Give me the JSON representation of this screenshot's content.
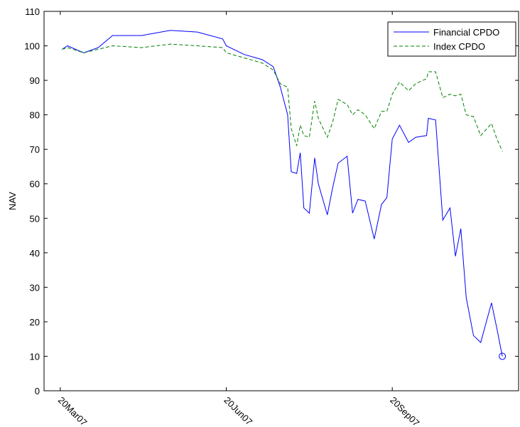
{
  "chart_data": {
    "type": "line",
    "ylabel": "NAV",
    "x": [
      "2007-03-21",
      "2007-03-24",
      "2007-04-02",
      "2007-04-10",
      "2007-04-18",
      "2007-05-04",
      "2007-05-20",
      "2007-06-04",
      "2007-06-18",
      "2007-06-20",
      "2007-06-30",
      "2007-07-10",
      "2007-07-16",
      "2007-07-20",
      "2007-07-24",
      "2007-07-26",
      "2007-07-29",
      "2007-07-31",
      "2007-08-02",
      "2007-08-05",
      "2007-08-08",
      "2007-08-10",
      "2007-08-15",
      "2007-08-18",
      "2007-08-21",
      "2007-08-26",
      "2007-08-29",
      "2007-09-01",
      "2007-09-05",
      "2007-09-10",
      "2007-09-14",
      "2007-09-17",
      "2007-09-20",
      "2007-09-24",
      "2007-09-29",
      "2007-10-03",
      "2007-10-09",
      "2007-10-10",
      "2007-10-14",
      "2007-10-18",
      "2007-10-22",
      "2007-10-25",
      "2007-10-28",
      "2007-10-31",
      "2007-11-04",
      "2007-11-08",
      "2007-11-14",
      "2007-11-17",
      "2007-11-20"
    ],
    "series": [
      {
        "name": "Financial CPDO",
        "color": "#0000ff",
        "dash": "solid",
        "end_marker": "circle",
        "values": [
          99,
          100,
          98,
          99.5,
          103,
          103,
          104.5,
          104,
          102,
          100,
          97.5,
          96,
          94,
          88,
          80,
          63.5,
          63,
          69,
          53,
          51.5,
          67.5,
          60,
          51,
          59,
          66,
          68,
          51.5,
          55.5,
          55,
          44,
          54,
          56,
          73,
          77,
          72,
          73.5,
          74,
          79,
          78.5,
          49.5,
          53,
          39,
          47,
          27,
          16,
          14,
          25.5,
          18,
          10
        ]
      },
      {
        "name": "Index CPDO",
        "color": "#008000",
        "dash": "dashed",
        "values": [
          99,
          99.5,
          98,
          99,
          100,
          99.5,
          100.5,
          100,
          99.5,
          98,
          96.5,
          95,
          93,
          89,
          88,
          76,
          71,
          77,
          74,
          73.5,
          84,
          79,
          73.5,
          78,
          84.5,
          83,
          80,
          81.5,
          80,
          76,
          81,
          81,
          86,
          89.5,
          87,
          89,
          90.5,
          92.5,
          92.5,
          85,
          86,
          85.5,
          86,
          80,
          79.5,
          74,
          77.5,
          73,
          69.5
        ]
      }
    ],
    "xlim": [
      "2007-03-11",
      "2007-11-29"
    ],
    "xticks": [
      {
        "value": "2007-03-20",
        "label": "20Mar07"
      },
      {
        "value": "2007-06-20",
        "label": "20Jun07"
      },
      {
        "value": "2007-09-20",
        "label": "20Sep07"
      }
    ],
    "ylim": [
      0,
      110
    ],
    "yticks": [
      0,
      10,
      20,
      30,
      40,
      50,
      60,
      70,
      80,
      90,
      100,
      110
    ],
    "legend": "upper right"
  }
}
